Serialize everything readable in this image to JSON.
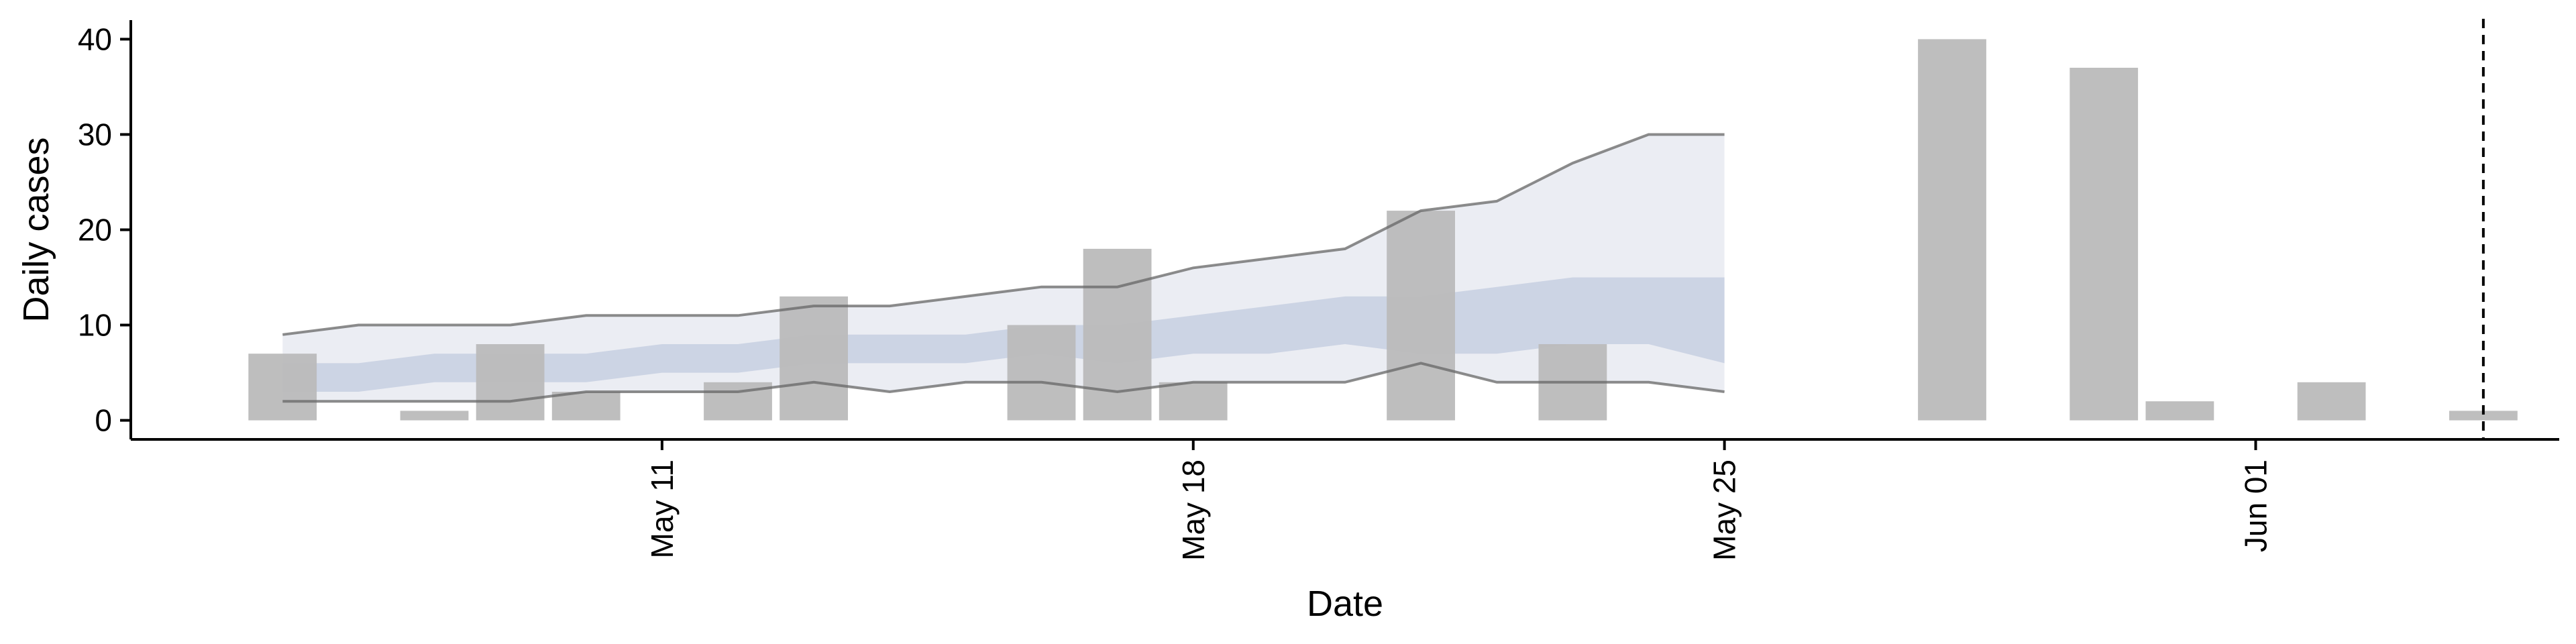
{
  "chart_data": {
    "type": "bar",
    "xlabel": "Date",
    "ylabel": "Daily cases",
    "ylim": [
      -2,
      42
    ],
    "y_ticks": [
      0,
      10,
      20,
      30,
      40
    ],
    "x_range": [
      "2020-05-04",
      "2020-06-05"
    ],
    "x_ticks": [
      {
        "date": "2020-05-11",
        "label": "May 11"
      },
      {
        "date": "2020-05-18",
        "label": "May 18"
      },
      {
        "date": "2020-05-25",
        "label": "May 25"
      },
      {
        "date": "2020-06-01",
        "label": "Jun 01"
      }
    ],
    "bars": {
      "color": "#bbbbbb",
      "dates": [
        "2020-05-06",
        "2020-05-07",
        "2020-05-08",
        "2020-05-09",
        "2020-05-10",
        "2020-05-11",
        "2020-05-12",
        "2020-05-13",
        "2020-05-14",
        "2020-05-15",
        "2020-05-16",
        "2020-05-17",
        "2020-05-18",
        "2020-05-19",
        "2020-05-20",
        "2020-05-21",
        "2020-05-22",
        "2020-05-23",
        "2020-05-24",
        "2020-05-25",
        "2020-05-26",
        "2020-05-27",
        "2020-05-28",
        "2020-05-29",
        "2020-05-30",
        "2020-05-31",
        "2020-06-01",
        "2020-06-02",
        "2020-06-03",
        "2020-06-04"
      ],
      "values": [
        7,
        0,
        1,
        8,
        3,
        0,
        4,
        13,
        0,
        0,
        10,
        18,
        4,
        0,
        0,
        22,
        0,
        8,
        0,
        0,
        0,
        0,
        40,
        0,
        37,
        2,
        0,
        4,
        0,
        1
      ]
    },
    "forecast_bands": {
      "dates": [
        "2020-05-06",
        "2020-05-07",
        "2020-05-08",
        "2020-05-09",
        "2020-05-10",
        "2020-05-11",
        "2020-05-12",
        "2020-05-13",
        "2020-05-14",
        "2020-05-15",
        "2020-05-16",
        "2020-05-17",
        "2020-05-18",
        "2020-05-19",
        "2020-05-20",
        "2020-05-21",
        "2020-05-22",
        "2020-05-23",
        "2020-05-24",
        "2020-05-25"
      ],
      "outer_lower": [
        2,
        2,
        2,
        2,
        3,
        3,
        3,
        4,
        3,
        4,
        4,
        3,
        4,
        4,
        4,
        6,
        4,
        4,
        4,
        3
      ],
      "outer_upper": [
        9,
        10,
        10,
        10,
        11,
        11,
        11,
        12,
        12,
        13,
        14,
        14,
        16,
        17,
        18,
        22,
        23,
        27,
        30,
        30
      ],
      "inner_lower": [
        3,
        3,
        4,
        4,
        4,
        5,
        5,
        6,
        6,
        6,
        7,
        6,
        7,
        7,
        8,
        7,
        7,
        8,
        8,
        6
      ],
      "inner_upper": [
        6,
        6,
        7,
        7,
        7,
        8,
        8,
        9,
        9,
        9,
        10,
        10,
        11,
        12,
        13,
        13,
        14,
        15,
        15,
        15
      ],
      "outer_color": "#e8eaf1",
      "inner_color": "#c9d0e2",
      "line_color": "#666666"
    },
    "reference_line": {
      "date": "2020-06-04",
      "style": "dashed",
      "color": "#000000"
    }
  }
}
